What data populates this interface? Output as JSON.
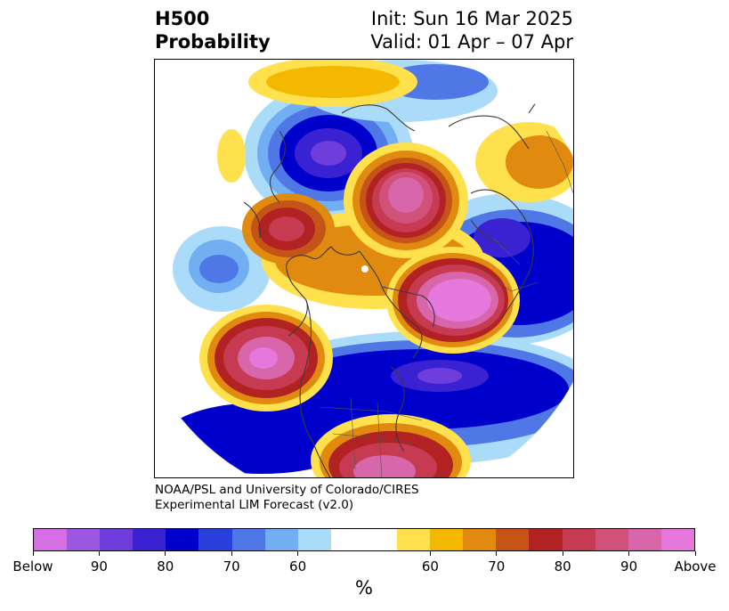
{
  "header": {
    "title_line1": "H500",
    "title_line2": "Probability",
    "init": "Init: Sun 16 Mar 2025",
    "valid": "Valid: 01 Apr – 07 Apr"
  },
  "credit": {
    "line1": "NOAA/PSL and University of Colorado/CIRES",
    "line2": "Experimental LIM Forecast (v2.0)"
  },
  "colorbar": {
    "unit": "%",
    "colors": [
      "#d66ee6",
      "#9b57e0",
      "#6f3ddb",
      "#3a22d2",
      "#0000cd",
      "#2a40dc",
      "#4f78e6",
      "#72aef2",
      "#aadcfa",
      "#ffffff",
      "#ffffff",
      "#ffe04d",
      "#f4b800",
      "#e08a10",
      "#c45418",
      "#b22222",
      "#c63a52",
      "#d0527a",
      "#d866aa",
      "#e677dc"
    ],
    "ticks": [
      {
        "label": "Below",
        "frac": 0.0
      },
      {
        "label": "90",
        "frac": 0.1
      },
      {
        "label": "80",
        "frac": 0.2
      },
      {
        "label": "70",
        "frac": 0.3
      },
      {
        "label": "60",
        "frac": 0.4
      },
      {
        "label": "60",
        "frac": 0.6
      },
      {
        "label": "70",
        "frac": 0.7
      },
      {
        "label": "80",
        "frac": 0.8
      },
      {
        "label": "90",
        "frac": 0.9
      },
      {
        "label": "Above",
        "frac": 1.0
      }
    ]
  },
  "map": {
    "colors": {
      "below_light": "#aadcfa",
      "below_mid": "#4f78e6",
      "below_strong": "#0000cd",
      "below_max": "#6f3ddb",
      "above_light": "#ffe04d",
      "above_mid": "#e08a10",
      "above_strong": "#b22222",
      "above_max": "#d866aa",
      "coastline": "#3a3a3a"
    }
  }
}
